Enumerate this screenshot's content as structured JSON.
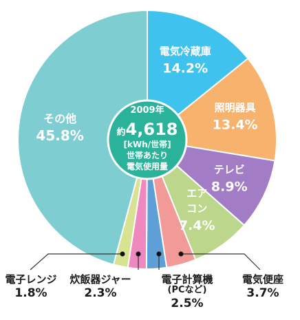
{
  "chart_data": {
    "type": "pie",
    "center": {
      "year": "2009年",
      "prefix": "約",
      "value": "4,618",
      "unit": "[kWh/世帯]",
      "line1": "世帯あたり",
      "line2": "電気使用量"
    },
    "slices": [
      {
        "id": "fridge",
        "label_lines": [
          "電気冷蔵庫"
        ],
        "value": 14.2,
        "value_label": "14.2%",
        "color": "#3fc3ee"
      },
      {
        "id": "light",
        "label_lines": [
          "照明器具"
        ],
        "value": 13.4,
        "value_label": "13.4%",
        "color": "#f7b26e"
      },
      {
        "id": "tv",
        "label_lines": [
          "テレビ"
        ],
        "value": 8.9,
        "value_label": "8.9%",
        "color": "#a27dc6"
      },
      {
        "id": "ac",
        "label_lines": [
          "エア",
          "コン"
        ],
        "value": 7.4,
        "value_label": "7.4%",
        "color": "#bcd78c"
      },
      {
        "id": "toilet",
        "label_lines": [
          "電気便座"
        ],
        "value": 3.7,
        "value_label": "3.7%",
        "color": "#f29a97"
      },
      {
        "id": "pc",
        "label_lines": [
          "電子計算機"
        ],
        "sub": "(PCなど)",
        "value": 2.5,
        "value_label": "2.5%",
        "color": "#5f9fd8"
      },
      {
        "id": "rice",
        "label_lines": [
          "炊飯器ジャー"
        ],
        "value": 2.3,
        "value_label": "2.3%",
        "color": "#ee88be"
      },
      {
        "id": "range",
        "label_lines": [
          "電子レンジ"
        ],
        "value": 1.8,
        "value_label": "1.8%",
        "color": "#d7e391"
      },
      {
        "id": "other",
        "label_lines": [
          "その他"
        ],
        "value": 45.8,
        "value_label": "45.8%",
        "color": "#7dcdd1"
      }
    ],
    "center_color": "#2ab29b"
  }
}
